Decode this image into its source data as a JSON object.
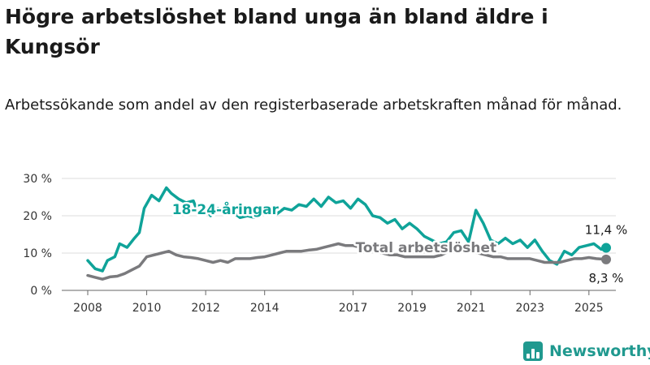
{
  "title": "Högre arbetslöshet bland unga än bland äldre i Kungsör",
  "subtitle": "Arbetssökande som andel av den registerbaserade arbetskraften månad för månad.",
  "brand": {
    "name": "Newsworthy",
    "icon": "bar-chart-logo-icon"
  },
  "colors": {
    "young": "#0fa399",
    "total": "#7a7a7d",
    "grid": "#dddddd",
    "axis": "#666666",
    "brand": "#20998f"
  },
  "chart_data": {
    "type": "line",
    "x_range": [
      "2008-01",
      "2025-08"
    ],
    "xticks": [
      "2008",
      "2010",
      "2012",
      "2014",
      "2017",
      "2019",
      "2021",
      "2023",
      "2025"
    ],
    "ylim": [
      0,
      30
    ],
    "yticks": [
      "0 %",
      "10 %",
      "20 %",
      "30 %"
    ],
    "grid": "horizontal",
    "series": [
      {
        "name": "18-24-åringar",
        "label_at": "2012-09",
        "end_label": "11,4 %",
        "points": [
          [
            "2008-01",
            8.0
          ],
          [
            "2008-04",
            5.8
          ],
          [
            "2008-07",
            5.2
          ],
          [
            "2008-09",
            8.0
          ],
          [
            "2008-12",
            9.0
          ],
          [
            "2009-02",
            12.5
          ],
          [
            "2009-05",
            11.5
          ],
          [
            "2009-08",
            14.0
          ],
          [
            "2009-10",
            15.5
          ],
          [
            "2009-12",
            22.0
          ],
          [
            "2010-03",
            25.5
          ],
          [
            "2010-06",
            24.0
          ],
          [
            "2010-09",
            27.5
          ],
          [
            "2010-11",
            26.0
          ],
          [
            "2011-02",
            24.5
          ],
          [
            "2011-05",
            23.5
          ],
          [
            "2011-08",
            24.0
          ],
          [
            "2011-10",
            20.5
          ],
          [
            "2011-12",
            23.0
          ],
          [
            "2012-03",
            20.0
          ],
          [
            "2012-06",
            22.0
          ],
          [
            "2012-09",
            20.5
          ],
          [
            "2012-12",
            21.0
          ],
          [
            "2013-03",
            19.5
          ],
          [
            "2013-06",
            20.0
          ],
          [
            "2013-09",
            19.5
          ],
          [
            "2013-12",
            20.5
          ],
          [
            "2014-03",
            21.0
          ],
          [
            "2014-06",
            20.5
          ],
          [
            "2014-09",
            22.0
          ],
          [
            "2014-12",
            21.5
          ],
          [
            "2015-03",
            23.0
          ],
          [
            "2015-06",
            22.5
          ],
          [
            "2015-09",
            24.5
          ],
          [
            "2015-12",
            22.5
          ],
          [
            "2016-03",
            25.0
          ],
          [
            "2016-06",
            23.5
          ],
          [
            "2016-09",
            24.0
          ],
          [
            "2016-12",
            22.0
          ],
          [
            "2017-03",
            24.5
          ],
          [
            "2017-06",
            23.0
          ],
          [
            "2017-09",
            20.0
          ],
          [
            "2017-12",
            19.5
          ],
          [
            "2018-03",
            18.0
          ],
          [
            "2018-06",
            19.0
          ],
          [
            "2018-09",
            16.5
          ],
          [
            "2018-12",
            18.0
          ],
          [
            "2019-03",
            16.5
          ],
          [
            "2019-06",
            14.5
          ],
          [
            "2019-09",
            13.5
          ],
          [
            "2019-12",
            12.5
          ],
          [
            "2020-03",
            13.0
          ],
          [
            "2020-06",
            15.5
          ],
          [
            "2020-09",
            16.0
          ],
          [
            "2020-12",
            13.0
          ],
          [
            "2021-03",
            21.5
          ],
          [
            "2021-06",
            18.0
          ],
          [
            "2021-09",
            13.5
          ],
          [
            "2021-12",
            12.5
          ],
          [
            "2022-03",
            14.0
          ],
          [
            "2022-06",
            12.5
          ],
          [
            "2022-09",
            13.5
          ],
          [
            "2022-12",
            11.5
          ],
          [
            "2023-03",
            13.5
          ],
          [
            "2023-06",
            10.5
          ],
          [
            "2023-09",
            8.0
          ],
          [
            "2023-12",
            7.0
          ],
          [
            "2024-03",
            10.5
          ],
          [
            "2024-06",
            9.5
          ],
          [
            "2024-09",
            11.5
          ],
          [
            "2024-12",
            12.0
          ],
          [
            "2025-03",
            12.5
          ],
          [
            "2025-06",
            11.0
          ],
          [
            "2025-08",
            11.4
          ]
        ]
      },
      {
        "name": "Total arbetslöshet",
        "label_at": "2017-02",
        "end_label": "8,3 %",
        "points": [
          [
            "2008-01",
            4.0
          ],
          [
            "2008-04",
            3.5
          ],
          [
            "2008-07",
            3.0
          ],
          [
            "2008-10",
            3.6
          ],
          [
            "2009-01",
            3.8
          ],
          [
            "2009-04",
            4.5
          ],
          [
            "2009-07",
            5.5
          ],
          [
            "2009-10",
            6.5
          ],
          [
            "2010-01",
            9.0
          ],
          [
            "2010-04",
            9.5
          ],
          [
            "2010-07",
            10.0
          ],
          [
            "2010-10",
            10.5
          ],
          [
            "2011-01",
            9.5
          ],
          [
            "2011-04",
            9.0
          ],
          [
            "2011-07",
            8.8
          ],
          [
            "2011-10",
            8.5
          ],
          [
            "2012-01",
            8.0
          ],
          [
            "2012-04",
            7.5
          ],
          [
            "2012-07",
            8.0
          ],
          [
            "2012-10",
            7.5
          ],
          [
            "2013-01",
            8.5
          ],
          [
            "2013-04",
            8.5
          ],
          [
            "2013-07",
            8.5
          ],
          [
            "2013-10",
            8.8
          ],
          [
            "2014-01",
            9.0
          ],
          [
            "2014-04",
            9.5
          ],
          [
            "2014-07",
            10.0
          ],
          [
            "2014-10",
            10.5
          ],
          [
            "2015-01",
            10.5
          ],
          [
            "2015-04",
            10.5
          ],
          [
            "2015-07",
            10.8
          ],
          [
            "2015-10",
            11.0
          ],
          [
            "2016-01",
            11.5
          ],
          [
            "2016-04",
            12.0
          ],
          [
            "2016-07",
            12.5
          ],
          [
            "2016-10",
            12.0
          ],
          [
            "2017-01",
            12.0
          ],
          [
            "2017-04",
            11.5
          ],
          [
            "2017-07",
            11.0
          ],
          [
            "2017-10",
            10.5
          ],
          [
            "2018-01",
            10.0
          ],
          [
            "2018-04",
            9.5
          ],
          [
            "2018-07",
            9.5
          ],
          [
            "2018-10",
            9.0
          ],
          [
            "2019-01",
            9.0
          ],
          [
            "2019-04",
            9.0
          ],
          [
            "2019-07",
            9.0
          ],
          [
            "2019-10",
            9.0
          ],
          [
            "2020-01",
            9.5
          ],
          [
            "2020-04",
            10.5
          ],
          [
            "2020-07",
            11.0
          ],
          [
            "2020-10",
            10.5
          ],
          [
            "2021-01",
            10.5
          ],
          [
            "2021-04",
            10.0
          ],
          [
            "2021-07",
            9.5
          ],
          [
            "2021-10",
            9.0
          ],
          [
            "2022-01",
            9.0
          ],
          [
            "2022-04",
            8.5
          ],
          [
            "2022-07",
            8.5
          ],
          [
            "2022-10",
            8.5
          ],
          [
            "2023-01",
            8.5
          ],
          [
            "2023-04",
            8.0
          ],
          [
            "2023-07",
            7.5
          ],
          [
            "2023-10",
            7.5
          ],
          [
            "2024-01",
            7.5
          ],
          [
            "2024-04",
            8.0
          ],
          [
            "2024-07",
            8.5
          ],
          [
            "2024-10",
            8.5
          ],
          [
            "2025-01",
            8.8
          ],
          [
            "2025-04",
            8.5
          ],
          [
            "2025-08",
            8.3
          ]
        ]
      }
    ]
  }
}
